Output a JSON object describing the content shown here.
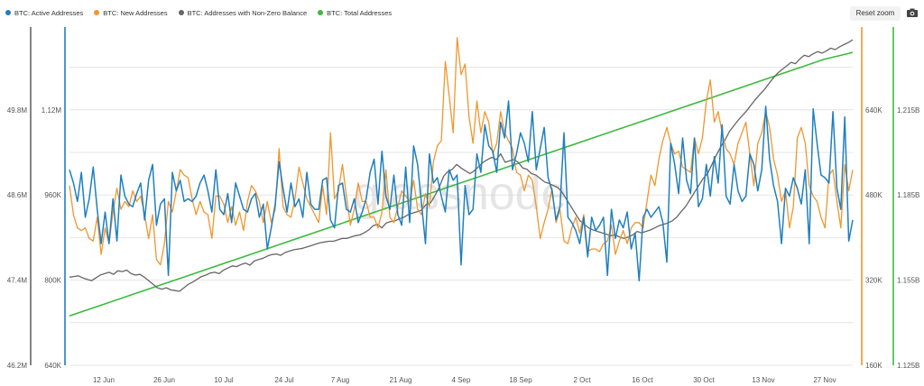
{
  "legend": [
    {
      "label": "BTC: Active Addresses",
      "color": "#1f7fc0"
    },
    {
      "label": "BTC: New Addresses",
      "color": "#f0962e"
    },
    {
      "label": "BTC: Addresses with Non-Zero Balance",
      "color": "#666666"
    },
    {
      "label": "BTC: Total Addresses",
      "color": "#3cba3c"
    }
  ],
  "reset_zoom_label": "Reset zoom",
  "watermark": "glassnode",
  "chart_data": {
    "type": "line",
    "x_tick_labels": [
      "12 Jun",
      "26 Jun",
      "10 Jul",
      "24 Jul",
      "7 Aug",
      "21 Aug",
      "4 Sep",
      "18 Sep",
      "2 Oct",
      "16 Oct",
      "30 Oct",
      "13 Nov",
      "27 Nov"
    ],
    "axes": {
      "nonzero": {
        "ticks": [
          "46.2M",
          "47.4M",
          "48.6M",
          "49.8M"
        ],
        "range": [
          46.2,
          51.0
        ],
        "unit": "M"
      },
      "active": {
        "ticks": [
          "640K",
          "800K",
          "960K",
          "1.12M"
        ],
        "range": [
          640,
          1280
        ],
        "unit": "K"
      },
      "new": {
        "ticks": [
          "160K",
          "320K",
          "480K",
          "640K"
        ],
        "range": [
          160,
          800
        ],
        "unit": "K"
      },
      "total": {
        "ticks": [
          "1.125B",
          "1.155B",
          "1.185B",
          "1.215B"
        ],
        "range": [
          1.125,
          1.245
        ],
        "unit": "B"
      }
    },
    "grid": true,
    "series": [
      {
        "name": "BTC: Active Addresses",
        "axis": "active",
        "color": "#1f7fc0",
        "values": [
          1010,
          985,
          950,
          1005,
          920,
          955,
          1015,
          935,
          870,
          930,
          870,
          955,
          875,
          1000,
          960,
          945,
          940,
          965,
          985,
          915,
          990,
          1020,
          905,
          945,
          955,
          810,
          1005,
          970,
          990,
          950,
          955,
          950,
          960,
          985,
          1000,
          970,
          930,
          1010,
          935,
          925,
          965,
          910,
          985,
          960,
          935,
          930,
          955,
          965,
          920,
          945,
          860,
          900,
          945,
          1025,
          975,
          930,
          985,
          940,
          955,
          920,
          1005,
          945,
          935,
          935,
          990,
          995,
          915,
          900,
          980,
          985,
          935,
          930,
          955,
          910,
          930,
          955,
          1005,
          1030,
          945,
          1045,
          960,
          935,
          1000,
          925,
          905,
          1015,
          910,
          1055,
          1020,
          945,
          870,
          1040,
          985,
          995,
          960,
          930,
          1010,
          990,
          1000,
          830,
          980,
          925,
          935,
          1040,
          1005,
          1095,
          1055,
          1045,
          1005,
          1100,
          1070,
          1140,
          1010,
          1040,
          1080,
          1060,
          1025,
          1120,
          1010,
          1050,
          1090,
          995,
          970,
          915,
          940,
          1080,
          920,
          910,
          895,
          870,
          920,
          845,
          920,
          895,
          905,
          920,
          810,
          935,
          880,
          915,
          900,
          930,
          860,
          890,
          800,
          920,
          935,
          920,
          930,
          940,
          910,
          835,
          1060,
          1020,
          965,
          1070,
          990,
          965,
          1070,
          940,
          955,
          1020,
          960,
          1035,
          985,
          1095,
          960,
          945,
          1020,
          970,
          950,
          960,
          1040,
          1020,
          970,
          1010,
          1130,
          1030,
          980,
          950,
          870,
          975,
          960,
          995,
          975,
          945,
          1010,
          870,
          1125,
          1060,
          1000,
          995,
          985,
          1120,
          975,
          935,
          1110,
          875,
          915
        ]
      },
      {
        "name": "BTC: New Addresses",
        "axis": "new",
        "color": "#f0962e",
        "values": [
          500,
          445,
          420,
          415,
          420,
          400,
          395,
          440,
          370,
          420,
          390,
          450,
          495,
          455,
          470,
          460,
          490,
          470,
          480,
          445,
          400,
          445,
          360,
          350,
          390,
          470,
          450,
          490,
          530,
          520,
          515,
          475,
          445,
          470,
          450,
          445,
          400,
          480,
          480,
          465,
          430,
          460,
          425,
          450,
          415,
          470,
          500,
          490,
          470,
          430,
          470,
          430,
          455,
          570,
          460,
          445,
          440,
          475,
          535,
          505,
          475,
          460,
          445,
          430,
          500,
          445,
          600,
          475,
          490,
          540,
          480,
          425,
          455,
          505,
          470,
          470,
          440,
          440,
          420,
          450,
          530,
          440,
          430,
          460,
          490,
          480,
          470,
          510,
          455,
          445,
          485,
          460,
          545,
          575,
          585,
          735,
          670,
          600,
          780,
          710,
          730,
          630,
          580,
          660,
          600,
          640,
          620,
          560,
          580,
          640,
          600,
          585,
          570,
          525,
          520,
          490,
          520,
          510,
          460,
          400,
          430,
          455,
          495,
          430,
          455,
          395,
          390,
          420,
          440,
          410,
          445,
          375,
          380,
          380,
          375,
          390,
          395,
          425,
          370,
          395,
          415,
          390,
          420,
          430,
          430,
          420,
          470,
          520,
          500,
          550,
          585,
          610,
          580,
          560,
          565,
          535,
          530,
          525,
          590,
          560,
          590,
          660,
          700,
          620,
          640,
          600,
          570,
          560,
          540,
          580,
          600,
          620,
          560,
          500,
          580,
          600,
          640,
          610,
          550,
          520,
          470,
          490,
          420,
          460,
          590,
          610,
          580,
          500,
          480,
          470,
          440,
          420,
          520,
          530,
          470,
          420,
          540,
          490,
          530
        ]
      },
      {
        "name": "BTC: Addresses with Non-Zero Balance",
        "axis": "nonzero",
        "color": "#666666",
        "values": [
          47.45,
          47.46,
          47.47,
          47.44,
          47.42,
          47.4,
          47.44,
          47.48,
          47.5,
          47.52,
          47.49,
          47.54,
          47.53,
          47.55,
          47.5,
          47.48,
          47.49,
          47.45,
          47.4,
          47.35,
          47.3,
          47.28,
          47.3,
          47.27,
          47.26,
          47.25,
          47.3,
          47.35,
          47.38,
          47.42,
          47.46,
          47.48,
          47.51,
          47.52,
          47.5,
          47.55,
          47.58,
          47.61,
          47.6,
          47.63,
          47.65,
          47.62,
          47.68,
          47.7,
          47.72,
          47.75,
          47.77,
          47.78,
          47.76,
          47.8,
          47.82,
          47.84,
          47.85,
          47.86,
          47.88,
          47.9,
          47.92,
          47.94,
          47.95,
          47.96,
          47.96,
          47.98,
          48.0,
          48.0,
          48.02,
          48.04,
          48.05,
          48.08,
          48.12,
          48.18,
          48.2,
          48.15,
          48.22,
          48.24,
          48.25,
          48.28,
          48.3,
          48.34,
          48.36,
          48.38,
          48.4,
          48.48,
          48.5,
          48.6,
          48.72,
          48.88,
          48.95,
          48.98,
          49.05,
          49.0,
          48.96,
          48.92,
          48.96,
          49.02,
          49.08,
          49.12,
          49.15,
          49.12,
          49.2,
          49.08,
          49.1,
          49.12,
          49.08,
          49.0,
          48.98,
          48.92,
          48.9,
          48.85,
          48.8,
          48.78,
          48.75,
          48.72,
          48.65,
          48.55,
          48.45,
          48.35,
          48.25,
          48.2,
          48.15,
          48.12,
          48.1,
          48.08,
          48.06,
          48.04,
          48.05,
          48.02,
          48.0,
          48.02,
          48.05,
          48.1,
          48.08,
          48.1,
          48.12,
          48.15,
          48.18,
          48.2,
          48.22,
          48.25,
          48.3,
          48.38,
          48.45,
          48.55,
          48.65,
          48.75,
          48.85,
          48.92,
          49.05,
          49.18,
          49.3,
          49.4,
          49.52,
          49.6,
          49.68,
          49.75,
          49.82,
          49.9,
          49.98,
          50.05,
          50.12,
          50.2,
          50.28,
          50.35,
          50.4,
          50.45,
          50.5,
          50.48,
          50.55,
          50.6,
          50.58,
          50.62,
          50.65,
          50.63,
          50.66,
          50.7,
          50.68,
          50.72,
          50.75,
          50.78,
          50.82
        ]
      },
      {
        "name": "BTC: Total Addresses",
        "axis": "total",
        "color": "#3cba3c",
        "values": [
          1.1425,
          1.146,
          1.1495,
          1.153,
          1.1565,
          1.16,
          1.1635,
          1.167,
          1.1705,
          1.174,
          1.1775,
          1.181,
          1.1845,
          1.188,
          1.1915,
          1.195,
          1.1985,
          1.202,
          1.2055,
          1.209,
          1.2125,
          1.216,
          1.2195,
          1.223,
          1.2265,
          1.23,
          1.2335,
          1.236
        ]
      }
    ]
  }
}
